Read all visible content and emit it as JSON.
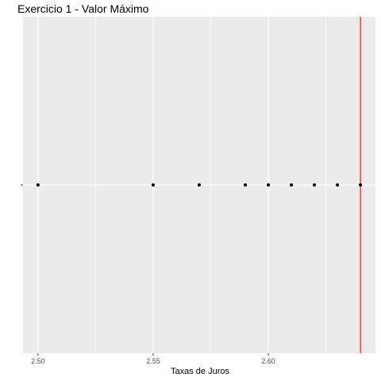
{
  "chart_data": {
    "type": "scatter",
    "title": "Exercicio 1 - Valor Máximo",
    "xlabel": "Taxas de Juros",
    "ylabel": "",
    "xlim": [
      2.4935,
      2.6465
    ],
    "x_ticks": [
      2.5,
      2.55,
      2.6
    ],
    "x_tick_labels": [
      "2.50",
      "2.55",
      "2.60"
    ],
    "y_ticks": [
      ""
    ],
    "grid": true,
    "points": [
      {
        "x": 2.5,
        "y": 0
      },
      {
        "x": 2.55,
        "y": 0
      },
      {
        "x": 2.57,
        "y": 0
      },
      {
        "x": 2.59,
        "y": 0
      },
      {
        "x": 2.6,
        "y": 0
      },
      {
        "x": 2.61,
        "y": 0
      },
      {
        "x": 2.62,
        "y": 0
      },
      {
        "x": 2.63,
        "y": 0
      },
      {
        "x": 2.64,
        "y": 0
      }
    ],
    "vline": {
      "x": 2.64,
      "color": "#ff0000"
    },
    "colors": {
      "panel": "#ebebeb",
      "grid": "#ffffff",
      "point": "#000000"
    }
  }
}
